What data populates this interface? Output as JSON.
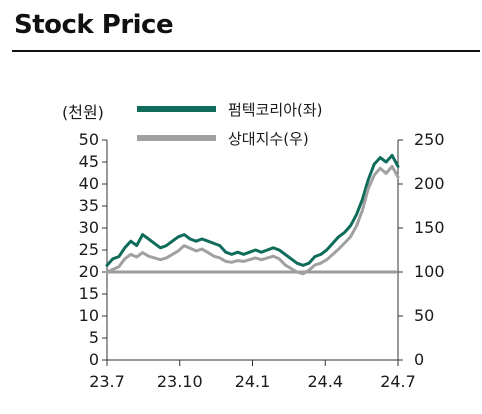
{
  "page": {
    "title": "Stock Price"
  },
  "chart_data": {
    "type": "line",
    "title": "",
    "xlabel": "",
    "x_ticks": [
      "23.7",
      "23.10",
      "24.1",
      "24.4",
      "24.7"
    ],
    "y_left": {
      "label": "(천원)",
      "range": [
        0,
        50
      ],
      "ticks": [
        0,
        5,
        10,
        15,
        20,
        25,
        30,
        35,
        40,
        45,
        50
      ]
    },
    "y_right": {
      "label": "",
      "range": [
        0,
        250
      ],
      "ticks": [
        0,
        50,
        100,
        150,
        200,
        250
      ]
    },
    "reference_line": {
      "axis": "right",
      "value": 100,
      "color": "#9b9b9b"
    },
    "legend": {
      "position": "top-right"
    },
    "grid": false,
    "series": [
      {
        "name": "펌텍코리아(좌)",
        "axis": "left",
        "color": "#0f6b5a",
        "x": [
          "23.7",
          "23.7",
          "23.8",
          "23.8",
          "23.8",
          "23.8",
          "23.9",
          "23.9",
          "23.9",
          "23.9",
          "23.10",
          "23.10",
          "23.10",
          "23.10",
          "23.11",
          "23.11",
          "23.11",
          "23.11",
          "23.12",
          "23.12",
          "23.12",
          "23.12",
          "24.1",
          "24.1",
          "24.1",
          "24.1",
          "24.2",
          "24.2",
          "24.2",
          "24.2",
          "24.3",
          "24.3",
          "24.3",
          "24.3",
          "24.4",
          "24.4",
          "24.4",
          "24.4",
          "24.5",
          "24.5",
          "24.5",
          "24.5",
          "24.6",
          "24.6",
          "24.6",
          "24.6",
          "24.6",
          "24.7",
          "24.7",
          "24.7"
        ],
        "values": [
          21.5,
          23.0,
          23.5,
          25.5,
          27.0,
          26.0,
          28.5,
          27.5,
          26.5,
          25.5,
          26.0,
          27.0,
          28.0,
          28.5,
          27.5,
          27.0,
          27.5,
          27.0,
          26.5,
          26.0,
          24.5,
          24.0,
          24.5,
          24.0,
          24.5,
          25.0,
          24.5,
          25.0,
          25.5,
          25.0,
          24.0,
          23.0,
          22.0,
          21.5,
          22.0,
          23.5,
          24.0,
          25.0,
          26.5,
          28.0,
          29.0,
          30.5,
          33.0,
          36.5,
          41.0,
          44.5,
          46.0,
          45.0,
          46.5,
          44.0
        ]
      },
      {
        "name": "상대지수(우)",
        "axis": "right",
        "color": "#a0a0a0",
        "x": [
          "23.7",
          "23.7",
          "23.8",
          "23.8",
          "23.8",
          "23.8",
          "23.9",
          "23.9",
          "23.9",
          "23.9",
          "23.10",
          "23.10",
          "23.10",
          "23.10",
          "23.11",
          "23.11",
          "23.11",
          "23.11",
          "23.12",
          "23.12",
          "23.12",
          "23.12",
          "24.1",
          "24.1",
          "24.1",
          "24.1",
          "24.2",
          "24.2",
          "24.2",
          "24.2",
          "24.3",
          "24.3",
          "24.3",
          "24.3",
          "24.4",
          "24.4",
          "24.4",
          "24.4",
          "24.5",
          "24.5",
          "24.5",
          "24.5",
          "24.6",
          "24.6",
          "24.6",
          "24.6",
          "24.6",
          "24.7",
          "24.7",
          "24.7"
        ],
        "values": [
          100,
          103,
          106,
          115,
          120,
          117,
          122,
          118,
          116,
          114,
          116,
          120,
          124,
          130,
          127,
          124,
          126,
          122,
          118,
          116,
          112,
          111,
          113,
          112,
          114,
          116,
          114,
          116,
          118,
          115,
          108,
          104,
          100,
          98,
          102,
          108,
          110,
          114,
          120,
          126,
          133,
          140,
          152,
          170,
          195,
          210,
          218,
          212,
          220,
          208
        ]
      }
    ]
  }
}
